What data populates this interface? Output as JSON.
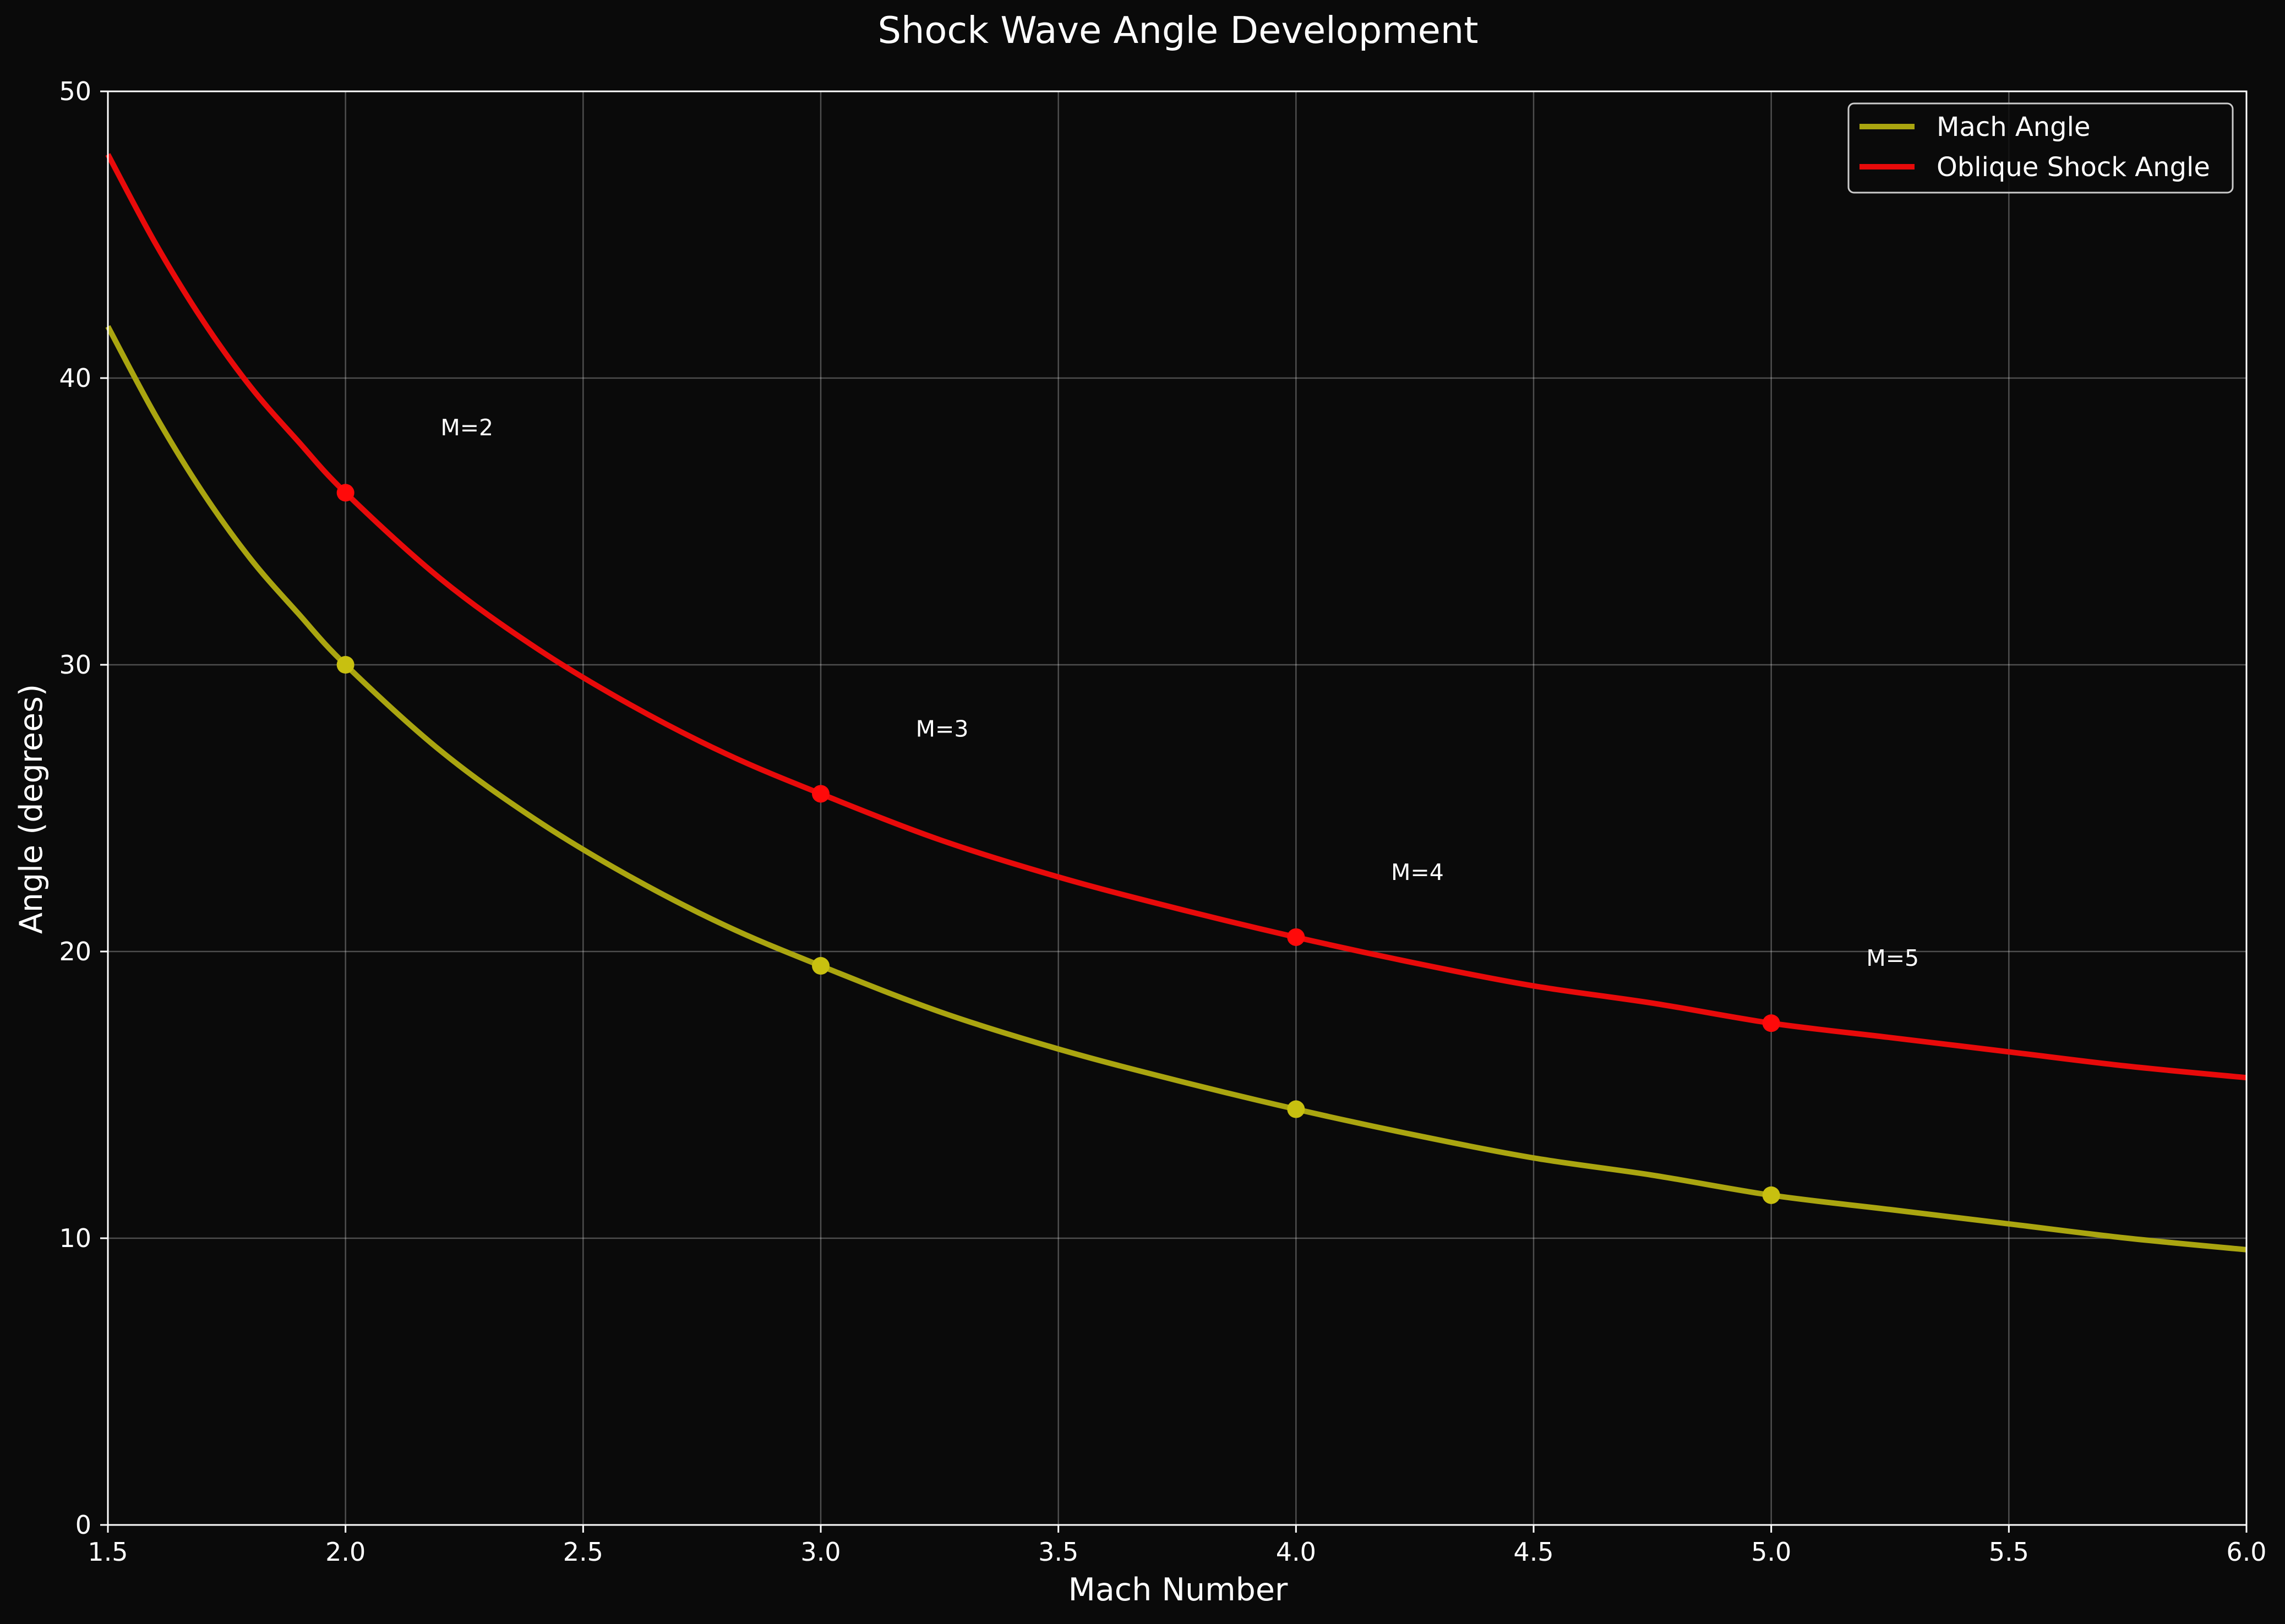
{
  "chart_data": {
    "type": "line",
    "title": "Shock Wave Angle Development",
    "xlabel": "Mach Number",
    "ylabel": "Angle (degrees)",
    "xlim": [
      1.5,
      6.0
    ],
    "ylim": [
      0,
      50
    ],
    "x_ticks": [
      "1.5",
      "2.0",
      "2.5",
      "3.0",
      "3.5",
      "4.0",
      "4.5",
      "5.0",
      "5.5",
      "6.0"
    ],
    "y_ticks": [
      "0",
      "10",
      "20",
      "30",
      "40",
      "50"
    ],
    "grid": true,
    "legend_position": "top-right",
    "series": [
      {
        "name": "Mach Angle",
        "color": "#aaa510",
        "marker_color": "#c8c010",
        "x": [
          1.5,
          1.6,
          1.7,
          1.8,
          1.9,
          2.0,
          2.2,
          2.4,
          2.6,
          2.8,
          3.0,
          3.25,
          3.5,
          3.75,
          4.0,
          4.25,
          4.5,
          4.75,
          5.0,
          5.25,
          5.5,
          5.75,
          6.0
        ],
        "values": [
          41.8,
          38.7,
          36.0,
          33.7,
          31.8,
          30.0,
          27.0,
          24.6,
          22.6,
          20.9,
          19.5,
          17.9,
          16.6,
          15.5,
          14.5,
          13.6,
          12.8,
          12.2,
          11.5,
          11.0,
          10.5,
          10.0,
          9.6
        ],
        "markers": [
          {
            "x": 2.0,
            "y": 30.0
          },
          {
            "x": 3.0,
            "y": 19.5
          },
          {
            "x": 4.0,
            "y": 14.5
          },
          {
            "x": 5.0,
            "y": 11.5
          }
        ]
      },
      {
        "name": "Oblique Shock Angle",
        "color": "#e80a0a",
        "marker_color": "#ff0a0a",
        "x": [
          1.5,
          1.6,
          1.7,
          1.8,
          1.9,
          2.0,
          2.2,
          2.4,
          2.6,
          2.8,
          3.0,
          3.25,
          3.5,
          3.75,
          4.0,
          4.25,
          4.5,
          4.75,
          5.0,
          5.25,
          5.5,
          5.75,
          6.0
        ],
        "values": [
          47.8,
          44.7,
          42.0,
          39.7,
          37.8,
          36.0,
          33.0,
          30.6,
          28.6,
          26.9,
          25.5,
          23.9,
          22.6,
          21.5,
          20.5,
          19.6,
          18.8,
          18.2,
          17.5,
          17.0,
          16.5,
          16.0,
          15.6
        ],
        "markers": [
          {
            "x": 2.0,
            "y": 36.0
          },
          {
            "x": 3.0,
            "y": 25.5
          },
          {
            "x": 4.0,
            "y": 20.5
          },
          {
            "x": 5.0,
            "y": 17.5
          }
        ]
      }
    ],
    "annotations": [
      {
        "text": "M=2",
        "x": 2.2,
        "y": 38.0
      },
      {
        "text": "M=3",
        "x": 3.2,
        "y": 27.5
      },
      {
        "text": "M=4",
        "x": 4.2,
        "y": 22.5
      },
      {
        "text": "M=5",
        "x": 5.2,
        "y": 19.5
      }
    ]
  }
}
